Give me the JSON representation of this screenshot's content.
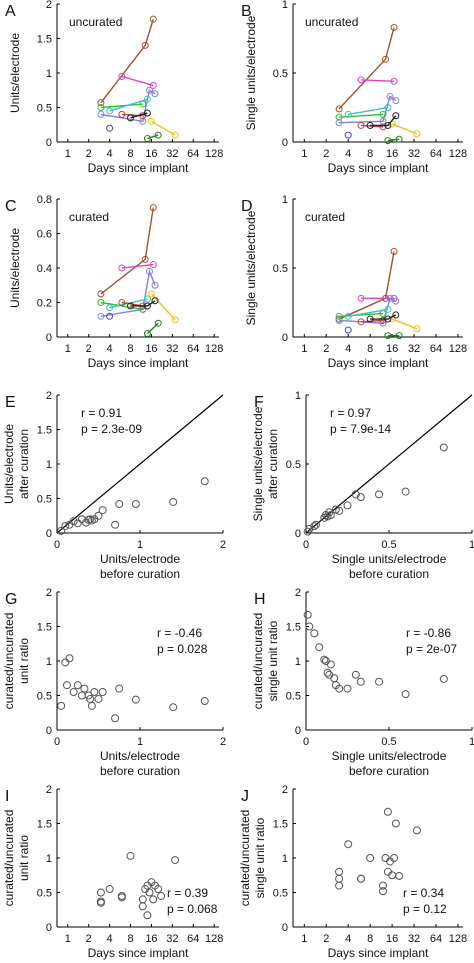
{
  "figure": {
    "background": "#ffffff"
  },
  "chart_data": [
    {
      "id": "A",
      "type": "line",
      "letter": "A",
      "annotation": "uncurated",
      "xlabel": "Days since implant",
      "ylabel": "Units/electrode",
      "xscale": "log2",
      "xlim": [
        0.7,
        150
      ],
      "xticks": [
        1,
        2,
        4,
        8,
        16,
        32,
        64,
        128
      ],
      "ylim": [
        0,
        2
      ],
      "yticks": [
        0,
        0.5,
        1,
        1.5,
        2
      ],
      "series": [
        {
          "color": "#a0522d",
          "x": [
            3,
            13,
            17
          ],
          "y": [
            0.57,
            1.4,
            1.78
          ]
        },
        {
          "color": "#e040c8",
          "x": [
            6,
            17
          ],
          "y": [
            0.95,
            0.82
          ]
        },
        {
          "color": "#8080e0",
          "x": [
            3,
            12,
            15,
            18
          ],
          "y": [
            0.4,
            0.3,
            0.75,
            0.7
          ]
        },
        {
          "color": "#30c030",
          "x": [
            3,
            12
          ],
          "y": [
            0.5,
            0.55
          ]
        },
        {
          "color": "#40c0c0",
          "x": [
            4,
            14
          ],
          "y": [
            0.45,
            0.62
          ]
        },
        {
          "color": "#c04040",
          "x": [
            6,
            12
          ],
          "y": [
            0.4,
            0.38
          ]
        },
        {
          "color": "#f0c020",
          "x": [
            16,
            35
          ],
          "y": [
            0.3,
            0.1
          ]
        },
        {
          "color": "#202020",
          "x": [
            8,
            14
          ],
          "y": [
            0.35,
            0.42
          ]
        },
        {
          "color": "#208020",
          "x": [
            14,
            20
          ],
          "y": [
            0.05,
            0.1
          ]
        },
        {
          "color": "#4040e0",
          "x": [
            4
          ],
          "y": [
            0.2
          ]
        }
      ]
    },
    {
      "id": "B",
      "type": "line",
      "letter": "B",
      "annotation": "uncurated",
      "xlabel": "Days since implant",
      "ylabel": "Single units/electrode",
      "xscale": "log2",
      "xlim": [
        0.7,
        150
      ],
      "xticks": [
        1,
        2,
        4,
        8,
        16,
        32,
        64,
        128
      ],
      "ylim": [
        0,
        1
      ],
      "yticks": [
        0,
        0.5,
        1
      ],
      "series": [
        {
          "color": "#a0522d",
          "x": [
            3,
            13,
            17
          ],
          "y": [
            0.24,
            0.6,
            0.83
          ]
        },
        {
          "color": "#e040c8",
          "x": [
            6,
            17
          ],
          "y": [
            0.45,
            0.44
          ]
        },
        {
          "color": "#8080e0",
          "x": [
            3,
            12,
            15,
            18
          ],
          "y": [
            0.14,
            0.15,
            0.33,
            0.3
          ]
        },
        {
          "color": "#30c030",
          "x": [
            3,
            12
          ],
          "y": [
            0.18,
            0.2
          ]
        },
        {
          "color": "#40c0c0",
          "x": [
            4,
            14
          ],
          "y": [
            0.2,
            0.25
          ]
        },
        {
          "color": "#c04040",
          "x": [
            6,
            12
          ],
          "y": [
            0.12,
            0.11
          ]
        },
        {
          "color": "#f0c020",
          "x": [
            16,
            35
          ],
          "y": [
            0.13,
            0.06
          ]
        },
        {
          "color": "#202020",
          "x": [
            8,
            14,
            18
          ],
          "y": [
            0.12,
            0.12,
            0.19
          ]
        },
        {
          "color": "#208020",
          "x": [
            14,
            20
          ],
          "y": [
            0.01,
            0.02
          ]
        },
        {
          "color": "#4040e0",
          "x": [
            4
          ],
          "y": [
            0.05
          ]
        }
      ]
    },
    {
      "id": "C",
      "type": "line",
      "letter": "C",
      "annotation": "curated",
      "xlabel": "Days since implant",
      "ylabel": "Units/electrode",
      "xscale": "log2",
      "xlim": [
        0.7,
        150
      ],
      "xticks": [
        1,
        2,
        4,
        8,
        16,
        32,
        64,
        128
      ],
      "ylim": [
        0,
        0.8
      ],
      "yticks": [
        0,
        0.2,
        0.4,
        0.6,
        0.8
      ],
      "series": [
        {
          "color": "#a0522d",
          "x": [
            3,
            13,
            17
          ],
          "y": [
            0.25,
            0.45,
            0.75
          ]
        },
        {
          "color": "#e040c8",
          "x": [
            6,
            17
          ],
          "y": [
            0.4,
            0.42
          ]
        },
        {
          "color": "#8080e0",
          "x": [
            3,
            12,
            15,
            18
          ],
          "y": [
            0.12,
            0.16,
            0.38,
            0.3
          ]
        },
        {
          "color": "#30c030",
          "x": [
            3,
            12
          ],
          "y": [
            0.2,
            0.16
          ]
        },
        {
          "color": "#40c0c0",
          "x": [
            4,
            14
          ],
          "y": [
            0.17,
            0.22
          ]
        },
        {
          "color": "#c04040",
          "x": [
            6,
            12
          ],
          "y": [
            0.2,
            0.18
          ]
        },
        {
          "color": "#f0c020",
          "x": [
            16,
            35
          ],
          "y": [
            0.25,
            0.1
          ]
        },
        {
          "color": "#202020",
          "x": [
            8,
            14,
            18
          ],
          "y": [
            0.18,
            0.18,
            0.21
          ]
        },
        {
          "color": "#208020",
          "x": [
            14,
            20
          ],
          "y": [
            0.02,
            0.08
          ]
        },
        {
          "color": "#4040e0",
          "x": [
            4
          ],
          "y": [
            0.12
          ]
        }
      ]
    },
    {
      "id": "D",
      "type": "line",
      "letter": "D",
      "annotation": "curated",
      "xlabel": "Days since implant",
      "ylabel": "Single units/electrode",
      "xscale": "log2",
      "xlim": [
        0.7,
        150
      ],
      "xticks": [
        1,
        2,
        4,
        8,
        16,
        32,
        64,
        128
      ],
      "ylim": [
        0,
        1
      ],
      "yticks": [
        0,
        0.5,
        1
      ],
      "series": [
        {
          "color": "#a0522d",
          "x": [
            3,
            13,
            17
          ],
          "y": [
            0.13,
            0.28,
            0.62
          ]
        },
        {
          "color": "#e040c8",
          "x": [
            6,
            17
          ],
          "y": [
            0.28,
            0.28
          ]
        },
        {
          "color": "#8080e0",
          "x": [
            3,
            12,
            15,
            18
          ],
          "y": [
            0.12,
            0.1,
            0.28,
            0.26
          ]
        },
        {
          "color": "#30c030",
          "x": [
            3,
            12
          ],
          "y": [
            0.15,
            0.17
          ]
        },
        {
          "color": "#40c0c0",
          "x": [
            4,
            14
          ],
          "y": [
            0.15,
            0.2
          ]
        },
        {
          "color": "#c04040",
          "x": [
            6,
            12
          ],
          "y": [
            0.11,
            0.12
          ]
        },
        {
          "color": "#f0c020",
          "x": [
            16,
            35
          ],
          "y": [
            0.13,
            0.06
          ]
        },
        {
          "color": "#202020",
          "x": [
            8,
            14,
            18
          ],
          "y": [
            0.13,
            0.13,
            0.16
          ]
        },
        {
          "color": "#208020",
          "x": [
            14,
            20
          ],
          "y": [
            0.01,
            0.01
          ]
        },
        {
          "color": "#4040e0",
          "x": [
            4
          ],
          "y": [
            0.05
          ]
        }
      ]
    },
    {
      "id": "E",
      "type": "scatter",
      "letter": "E",
      "annotation": "r = 0.91\np = 2.3e-09",
      "xlabel": "Units/electrode\nbefore curation",
      "ylabel": "Units/electrode\nafter curation",
      "xscale": "linear",
      "xlim": [
        0,
        2
      ],
      "xticks": [
        0,
        1,
        2
      ],
      "ylim": [
        0,
        2
      ],
      "yticks": [
        0,
        0.5,
        1,
        1.5,
        2
      ],
      "identity_line": true,
      "x": [
        0.05,
        0.1,
        0.15,
        0.2,
        0.25,
        0.3,
        0.35,
        0.38,
        0.4,
        0.42,
        0.45,
        0.5,
        0.55,
        0.7,
        0.75,
        0.95,
        1.4,
        1.78
      ],
      "y": [
        0.03,
        0.1,
        0.12,
        0.17,
        0.14,
        0.2,
        0.15,
        0.19,
        0.2,
        0.18,
        0.2,
        0.25,
        0.33,
        0.12,
        0.42,
        0.42,
        0.45,
        0.75
      ]
    },
    {
      "id": "F",
      "type": "scatter",
      "letter": "F",
      "annotation": "r = 0.97\np = 7.9e-14",
      "xlabel": "Single units/electrode\nbefore curation",
      "ylabel": "Single units/electrode\nafter curation",
      "xscale": "linear",
      "xlim": [
        0,
        1
      ],
      "xticks": [
        0,
        0.5,
        1
      ],
      "ylim": [
        0,
        1
      ],
      "yticks": [
        0,
        0.5,
        1
      ],
      "identity_line": true,
      "x": [
        0.01,
        0.02,
        0.05,
        0.06,
        0.11,
        0.12,
        0.13,
        0.14,
        0.15,
        0.18,
        0.2,
        0.25,
        0.3,
        0.33,
        0.44,
        0.6,
        0.83
      ],
      "y": [
        0.01,
        0.03,
        0.05,
        0.06,
        0.11,
        0.13,
        0.12,
        0.15,
        0.13,
        0.17,
        0.16,
        0.2,
        0.28,
        0.26,
        0.28,
        0.3,
        0.62
      ]
    },
    {
      "id": "G",
      "type": "scatter",
      "letter": "G",
      "annotation": "r = -0.46\np = 0.028",
      "xlabel": "Units/electrode\nbefore curation",
      "ylabel": "curated/uncurated\nunit ratio",
      "xscale": "linear",
      "xlim": [
        0,
        2
      ],
      "xticks": [
        0,
        1,
        2
      ],
      "ylim": [
        0,
        2
      ],
      "yticks": [
        0,
        0.5,
        1,
        1.5,
        2
      ],
      "x": [
        0.05,
        0.1,
        0.12,
        0.15,
        0.2,
        0.25,
        0.3,
        0.33,
        0.38,
        0.4,
        0.42,
        0.45,
        0.5,
        0.55,
        0.7,
        0.75,
        0.95,
        1.4,
        1.78
      ],
      "y": [
        0.35,
        0.98,
        0.65,
        1.04,
        0.55,
        0.65,
        0.5,
        0.6,
        0.5,
        0.45,
        0.35,
        0.55,
        0.45,
        0.55,
        0.17,
        0.6,
        0.44,
        0.33,
        0.42
      ]
    },
    {
      "id": "H",
      "type": "scatter",
      "letter": "H",
      "annotation": "r = -0.86\np = 2e-07",
      "xlabel": "Single units/electrode\nbefore curation",
      "ylabel": "curated/uncurated\nsingle unit ratio",
      "xscale": "linear",
      "xlim": [
        0,
        1
      ],
      "xticks": [
        0,
        0.5,
        1
      ],
      "ylim": [
        0,
        2
      ],
      "yticks": [
        0,
        0.5,
        1,
        1.5,
        2
      ],
      "x": [
        0.01,
        0.02,
        0.05,
        0.08,
        0.11,
        0.12,
        0.13,
        0.14,
        0.15,
        0.17,
        0.18,
        0.2,
        0.25,
        0.3,
        0.33,
        0.44,
        0.6,
        0.83
      ],
      "y": [
        1.67,
        1.5,
        1.4,
        1.2,
        1.02,
        1.0,
        0.83,
        0.8,
        0.95,
        0.75,
        0.65,
        0.6,
        0.6,
        0.8,
        0.7,
        0.7,
        0.52,
        0.74
      ]
    },
    {
      "id": "I",
      "type": "scatter",
      "letter": "I",
      "annotation": "r = 0.39\np = 0.068",
      "xlabel": "Days since implant",
      "ylabel": "curated/uncurated\nunit ratio",
      "xscale": "log2",
      "xlim": [
        0.7,
        150
      ],
      "xticks": [
        1,
        2,
        4,
        8,
        16,
        32,
        64,
        128
      ],
      "ylim": [
        0,
        2
      ],
      "yticks": [
        0,
        0.5,
        1,
        1.5,
        2
      ],
      "x": [
        3,
        3,
        3,
        4,
        6,
        6,
        8,
        12,
        12,
        13,
        14,
        14,
        15,
        16,
        17,
        18,
        20,
        22,
        35
      ],
      "y": [
        0.35,
        0.5,
        0.37,
        0.55,
        0.45,
        0.43,
        1.03,
        0.3,
        0.4,
        0.55,
        0.17,
        0.6,
        0.5,
        0.65,
        0.4,
        0.6,
        0.55,
        0.45,
        0.97
      ]
    },
    {
      "id": "J",
      "type": "scatter",
      "letter": "J",
      "annotation": "r = 0.34\np = 0.12",
      "xlabel": "Days since implant",
      "ylabel": "curated/uncurated\nsingle unit ratio",
      "xscale": "log2",
      "xlim": [
        0.7,
        150
      ],
      "xticks": [
        1,
        2,
        4,
        8,
        16,
        32,
        64,
        128
      ],
      "ylim": [
        0,
        2
      ],
      "yticks": [
        0,
        0.5,
        1,
        1.5,
        2
      ],
      "x": [
        3,
        3,
        3,
        4,
        6,
        6,
        8,
        12,
        12,
        13,
        14,
        14,
        15,
        16,
        17,
        18,
        20,
        35
      ],
      "y": [
        0.6,
        0.7,
        0.8,
        1.2,
        0.7,
        0.7,
        1.0,
        0.6,
        0.52,
        1.0,
        1.67,
        0.8,
        0.95,
        0.75,
        1.0,
        1.5,
        0.74,
        1.4
      ]
    }
  ]
}
